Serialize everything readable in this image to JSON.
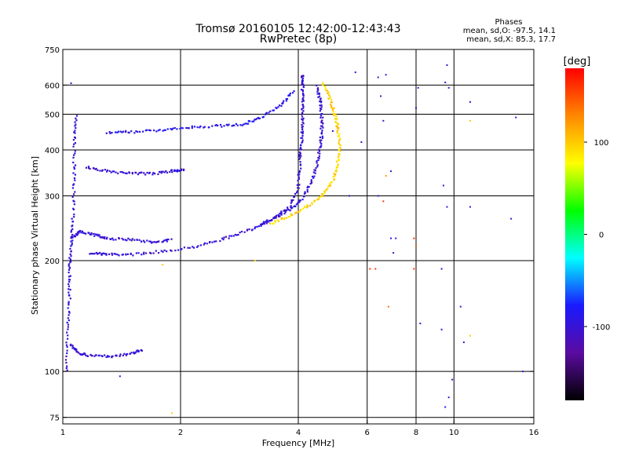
{
  "chart_data": {
    "type": "scatter",
    "title": "Tromsø 20160105 12:42:00-12:43:43",
    "subtitle": "RwPretec (8p)",
    "xlabel": "Frequency [MHz]",
    "ylabel": "Stationary phase Virtual Height [km]",
    "x_scale": "log",
    "y_scale": "log",
    "xlim": [
      1,
      16
    ],
    "ylim": [
      72,
      750
    ],
    "x_ticks": [
      1,
      2,
      4,
      6,
      8,
      10,
      16
    ],
    "y_ticks": [
      75,
      100,
      200,
      300,
      400,
      500,
      600,
      750
    ],
    "grid": true,
    "phase_stats": {
      "header": "Phases",
      "line_o": "mean, sd,O: -97.5, 14.1",
      "line_x": "mean, sd,X:  85.3, 17.7"
    },
    "colorbar": {
      "label": "[deg]",
      "ticks": [
        100,
        0,
        -100
      ],
      "range": [
        -180,
        180
      ],
      "colors": [
        "#000000",
        "#5a0ba0",
        "#1a1aff",
        "#00ffff",
        "#00ff00",
        "#ffff00",
        "#ff8800",
        "#ff0000"
      ]
    },
    "traces": [
      {
        "mode": "O",
        "phase": -100,
        "points": [
          [
            1.18,
            210
          ],
          [
            1.3,
            208
          ],
          [
            1.5,
            208
          ],
          [
            1.8,
            212
          ],
          [
            2.2,
            219
          ],
          [
            2.6,
            230
          ],
          [
            3.0,
            242
          ],
          [
            3.4,
            258
          ],
          [
            3.8,
            280
          ],
          [
            4.0,
            320
          ],
          [
            4.05,
            380
          ],
          [
            4.08,
            430
          ],
          [
            4.1,
            480
          ],
          [
            4.1,
            540
          ],
          [
            4.1,
            600
          ],
          [
            4.1,
            640
          ]
        ]
      },
      {
        "mode": "O-branch",
        "phase": -100,
        "points": [
          [
            3.2,
            252
          ],
          [
            3.5,
            262
          ],
          [
            3.8,
            275
          ],
          [
            4.1,
            295
          ],
          [
            4.35,
            330
          ],
          [
            4.5,
            380
          ],
          [
            4.58,
            430
          ],
          [
            4.6,
            480
          ],
          [
            4.55,
            540
          ],
          [
            4.45,
            600
          ]
        ]
      },
      {
        "mode": "X",
        "phase": 95,
        "points": [
          [
            3.4,
            252
          ],
          [
            3.8,
            265
          ],
          [
            4.2,
            280
          ],
          [
            4.6,
            300
          ],
          [
            4.9,
            330
          ],
          [
            5.05,
            370
          ],
          [
            5.1,
            410
          ],
          [
            5.05,
            460
          ],
          [
            4.95,
            500
          ],
          [
            4.8,
            560
          ],
          [
            4.6,
            610
          ]
        ]
      },
      {
        "mode": "E-layer",
        "phase": -100,
        "points": [
          [
            1.05,
            118
          ],
          [
            1.1,
            112
          ],
          [
            1.2,
            110
          ],
          [
            1.35,
            110
          ],
          [
            1.5,
            112
          ],
          [
            1.6,
            115
          ]
        ]
      },
      {
        "mode": "low-F",
        "phase": -100,
        "points": [
          [
            1.05,
            230
          ],
          [
            1.1,
            240
          ],
          [
            1.2,
            235
          ],
          [
            1.3,
            230
          ],
          [
            1.5,
            228
          ],
          [
            1.7,
            225
          ],
          [
            1.9,
            228
          ]
        ]
      },
      {
        "mode": "F-upper",
        "phase": -100,
        "points": [
          [
            1.15,
            360
          ],
          [
            1.3,
            350
          ],
          [
            1.5,
            345
          ],
          [
            1.7,
            345
          ],
          [
            1.9,
            350
          ],
          [
            2.05,
            355
          ]
        ]
      },
      {
        "mode": "F-high",
        "phase": -90,
        "points": [
          [
            1.3,
            445
          ],
          [
            1.5,
            448
          ],
          [
            1.8,
            452
          ],
          [
            2.1,
            460
          ],
          [
            2.5,
            465
          ],
          [
            2.9,
            470
          ],
          [
            3.2,
            490
          ],
          [
            3.6,
            530
          ],
          [
            3.9,
            580
          ]
        ]
      },
      {
        "mode": "low-freq column",
        "phase": -100,
        "points": [
          [
            1.02,
            100
          ],
          [
            1.03,
            130
          ],
          [
            1.04,
            160
          ],
          [
            1.04,
            190
          ],
          [
            1.05,
            220
          ],
          [
            1.06,
            260
          ],
          [
            1.07,
            330
          ],
          [
            1.07,
            420
          ],
          [
            1.08,
            500
          ]
        ]
      }
    ],
    "noise": [
      [
        6.4,
        630,
        -100
      ],
      [
        6.7,
        640,
        -100
      ],
      [
        8.1,
        590,
        -100
      ],
      [
        9.5,
        610,
        -100
      ],
      [
        9.7,
        590,
        -100
      ],
      [
        9.6,
        680,
        -100
      ],
      [
        6.6,
        480,
        -100
      ],
      [
        6.7,
        340,
        120
      ],
      [
        6.9,
        350,
        -100
      ],
      [
        6.4,
        300,
        -100
      ],
      [
        6.6,
        290,
        160
      ],
      [
        7.1,
        230,
        -100
      ],
      [
        7.9,
        230,
        160
      ],
      [
        8.0,
        220,
        140
      ],
      [
        6.9,
        230,
        -100
      ],
      [
        7.0,
        210,
        -100
      ],
      [
        6.1,
        190,
        160
      ],
      [
        6.3,
        190,
        160
      ],
      [
        7.9,
        190,
        160
      ],
      [
        9.3,
        190,
        -100
      ],
      [
        9.6,
        280,
        -100
      ],
      [
        9.4,
        320,
        -100
      ],
      [
        11.0,
        280,
        -100
      ],
      [
        14.0,
        260,
        -100
      ],
      [
        6.8,
        150,
        140
      ],
      [
        8.2,
        135,
        -100
      ],
      [
        9.3,
        130,
        -100
      ],
      [
        10.4,
        150,
        -100
      ],
      [
        10.6,
        120,
        -100
      ],
      [
        11.0,
        125,
        100
      ],
      [
        9.9,
        95,
        -100
      ],
      [
        9.7,
        85,
        -100
      ],
      [
        9.5,
        80,
        -80
      ],
      [
        15.0,
        100,
        -100
      ],
      [
        11.0,
        480,
        100
      ],
      [
        11.0,
        540,
        -80
      ],
      [
        14.4,
        490,
        -80
      ],
      [
        8.0,
        520,
        -100
      ],
      [
        6.5,
        560,
        -100
      ],
      [
        4.9,
        450,
        -100
      ],
      [
        5.6,
        650,
        -80
      ],
      [
        5.4,
        300,
        -100
      ],
      [
        5.8,
        420,
        -100
      ],
      [
        1.9,
        77,
        100
      ],
      [
        1.4,
        97,
        -100
      ],
      [
        3.1,
        200,
        100
      ],
      [
        1.05,
        607,
        -100
      ],
      [
        1.8,
        195,
        100
      ]
    ]
  }
}
